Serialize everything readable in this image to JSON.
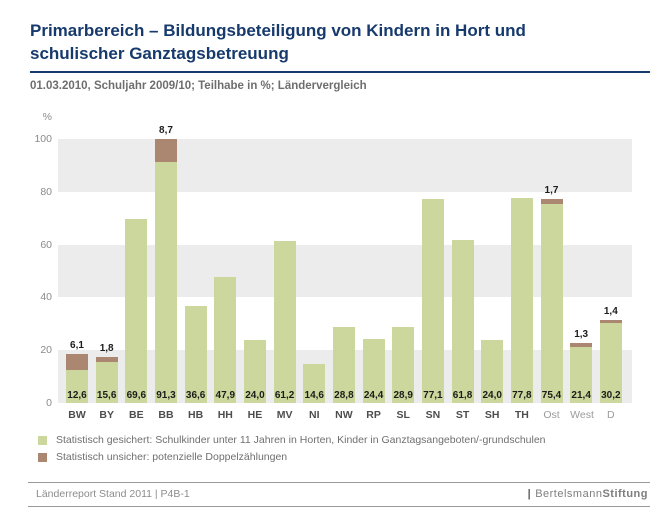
{
  "header": {
    "title": "Primarbereich – Bildungsbeteiligung von Kindern in Hort und schulischer Ganztagsbetreuung",
    "subtitle": "01.03.2010, Schuljahr 2009/10; Teilhabe in %; Ländervergleich",
    "accent_color": "#173a6d"
  },
  "chart_data": {
    "type": "bar",
    "stacked": true,
    "title": "Primarbereich – Bildungsbeteiligung von Kindern in Hort und schulischer Ganztagsbetreuung",
    "subtitle": "01.03.2010, Schuljahr 2009/10; Teilhabe in %; Ländervergleich",
    "ylabel": "%",
    "ylim": [
      0,
      100
    ],
    "yticks": [
      100,
      80,
      60,
      40,
      20,
      0
    ],
    "grid": "alternating horizontal bands of 20 units, gray on 0-20, 40-60, 80-100",
    "band_color": "#ececec",
    "legend_position": "bottom-left",
    "categories": [
      "BW",
      "BY",
      "BE",
      "BB",
      "HB",
      "HH",
      "HE",
      "MV",
      "NI",
      "NW",
      "RP",
      "SL",
      "SN",
      "ST",
      "SH",
      "TH",
      "Ost",
      "West",
      "D"
    ],
    "muted_categories": [
      "Ost",
      "West",
      "D"
    ],
    "series": [
      {
        "name": "Statistisch gesichert: Schulkinder unter 11 Jahren in Horten, Kinder in Ganztagsangeboten/-grundschulen",
        "color": "#cbd79c",
        "values": [
          12.6,
          15.6,
          69.6,
          91.3,
          36.6,
          47.9,
          24.0,
          61.2,
          14.6,
          28.8,
          24.4,
          28.9,
          77.1,
          61.8,
          24.0,
          77.8,
          75.4,
          21.4,
          30.2
        ],
        "labels": [
          "12,6",
          "15,6",
          "69,6",
          "91,3",
          "36,6",
          "47,9",
          "24,0",
          "61,2",
          "14,6",
          "28,8",
          "24,4",
          "28,9",
          "77,1",
          "61,8",
          "24,0",
          "77,8",
          "75,4",
          "21,4",
          "30,2"
        ]
      },
      {
        "name": "Statistisch unsicher: potenzielle Doppelzählungen",
        "color": "#ab8670",
        "values": [
          6.1,
          1.8,
          0,
          8.7,
          0,
          0,
          0,
          0,
          0,
          0,
          0,
          0,
          0,
          0,
          0,
          0,
          1.7,
          1.3,
          1.4
        ],
        "labels": [
          "6,1",
          "1,8",
          "",
          "8,7",
          "",
          "",
          "",
          "",
          "",
          "",
          "",
          "",
          "",
          "",
          "",
          "",
          "1,7",
          "1,3",
          "1,4"
        ]
      }
    ]
  },
  "legend": {
    "items": [
      {
        "color": "#cbd79c",
        "label": "Statistisch gesichert: Schulkinder unter 11 Jahren in Horten, Kinder in Ganztagsangeboten/-grundschulen"
      },
      {
        "color": "#ab8670",
        "label": "Statistisch unsicher: potenzielle Doppelzählungen"
      }
    ]
  },
  "footer": {
    "left": "Länderreport Stand 2011 | P4B-1",
    "brand_bar": "|",
    "brand_name": "Bertelsmann",
    "brand_suffix": "Stiftung"
  }
}
